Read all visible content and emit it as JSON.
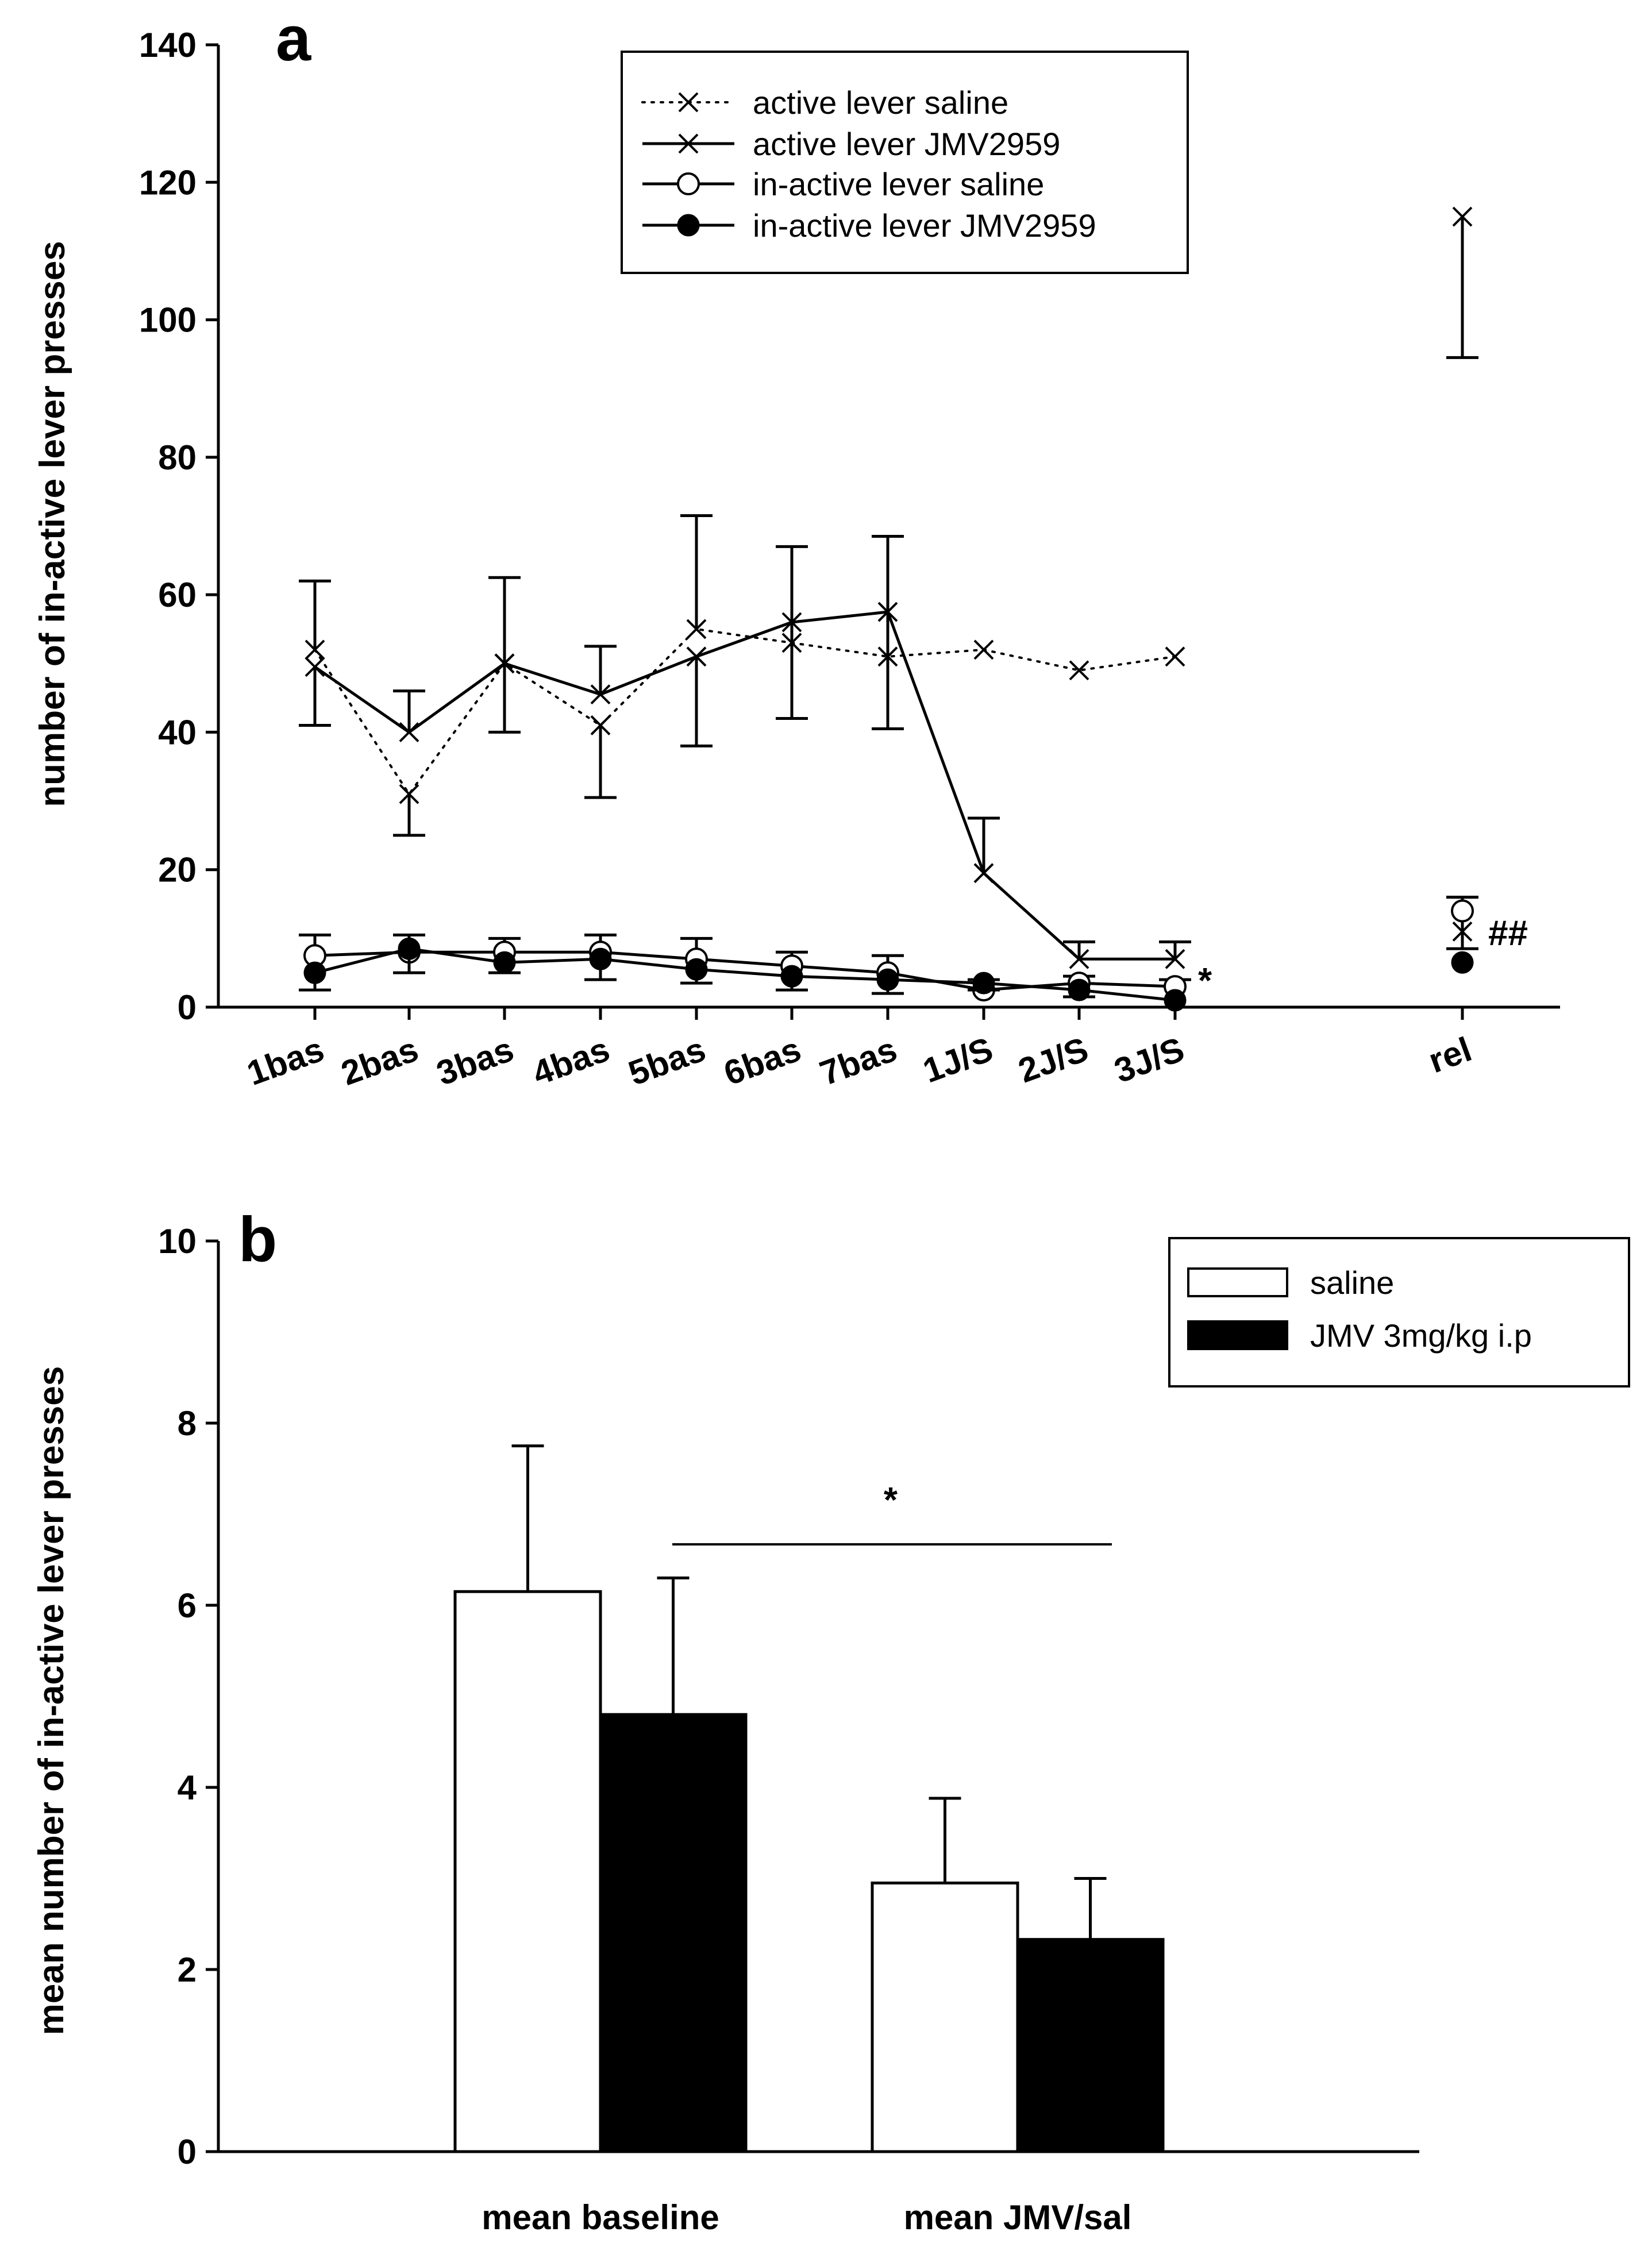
{
  "chart_data": [
    {
      "panel": "a",
      "type": "line",
      "ylabel": "number of in-active lever presses",
      "ylim": [
        0,
        140
      ],
      "yticks": [
        0,
        20,
        40,
        60,
        80,
        100,
        120,
        140
      ],
      "categories": [
        "1bas",
        "2bas",
        "3bas",
        "4bas",
        "5bas",
        "6bas",
        "7bas",
        "1J/S",
        "2J/S",
        "3J/S",
        "rel"
      ],
      "legend": {
        "placement": "top-center"
      },
      "series": [
        {
          "name": "active lever saline",
          "style": "dotted",
          "marker": "x",
          "values": [
            52,
            31,
            50,
            41,
            55,
            53,
            51,
            52,
            49,
            51,
            115
          ],
          "err_hi": [
            62,
            null,
            null,
            null,
            71.5,
            null,
            null,
            null,
            null,
            null,
            null
          ],
          "err_lo": [
            null,
            25,
            null,
            30.5,
            null,
            null,
            null,
            null,
            null,
            null,
            94.5
          ]
        },
        {
          "name": "active lever JMV2959",
          "style": "solid",
          "marker": "x",
          "values": [
            49.5,
            40,
            50,
            45.5,
            51,
            56,
            57.5,
            19.5,
            7,
            7,
            11
          ],
          "err_hi": [
            null,
            46,
            62.5,
            52.5,
            null,
            67,
            68.5,
            27.5,
            9.5,
            9.5,
            16
          ],
          "err_lo": [
            41,
            null,
            40,
            null,
            38,
            42,
            40.5,
            null,
            null,
            null,
            8.5
          ]
        },
        {
          "name": "in-active lever saline",
          "style": "solid",
          "marker": "open-circle",
          "values": [
            7.5,
            8,
            8,
            8,
            7,
            6,
            5,
            2.5,
            3.5,
            3,
            14
          ],
          "err_hi": [
            10.5,
            10.5,
            10,
            10.5,
            10,
            8,
            7.5,
            4,
            4.5,
            4,
            16
          ],
          "err_lo": [
            null,
            null,
            null,
            null,
            null,
            null,
            null,
            null,
            null,
            null,
            null
          ]
        },
        {
          "name": "in-active lever JMV2959",
          "style": "solid",
          "marker": "filled-circle",
          "values": [
            5,
            8.5,
            6.5,
            7,
            5.5,
            4.5,
            4,
            3.5,
            2.5,
            1,
            6.5
          ],
          "err_hi": [
            null,
            null,
            null,
            null,
            null,
            null,
            null,
            null,
            null,
            null,
            null
          ],
          "err_lo": [
            2.5,
            5,
            5,
            4,
            3.5,
            2.5,
            2,
            2.5,
            1.5,
            0,
            null
          ]
        }
      ],
      "annotations": [
        {
          "text": "*",
          "anchor_category": "3J/S"
        },
        {
          "text": "##",
          "anchor_category": "rel"
        }
      ]
    },
    {
      "panel": "b",
      "type": "bar",
      "ylabel": "mean number of in-active lever presses",
      "ylim": [
        0,
        10
      ],
      "yticks": [
        0,
        2,
        4,
        6,
        8,
        10
      ],
      "categories": [
        "mean baseline",
        "mean JMV/sal"
      ],
      "legend": {
        "placement": "top-right"
      },
      "series": [
        {
          "name": "saline",
          "color": "#ffffff",
          "values": [
            6.15,
            2.95
          ],
          "err_hi": [
            7.75,
            3.88
          ]
        },
        {
          "name": "JMV 3mg/kg i.p",
          "color": "#000000",
          "values": [
            4.8,
            2.33
          ],
          "err_hi": [
            6.3,
            3.0
          ]
        }
      ],
      "annotations": [
        {
          "text": "*",
          "note_type": "significance-bracket"
        }
      ]
    }
  ]
}
